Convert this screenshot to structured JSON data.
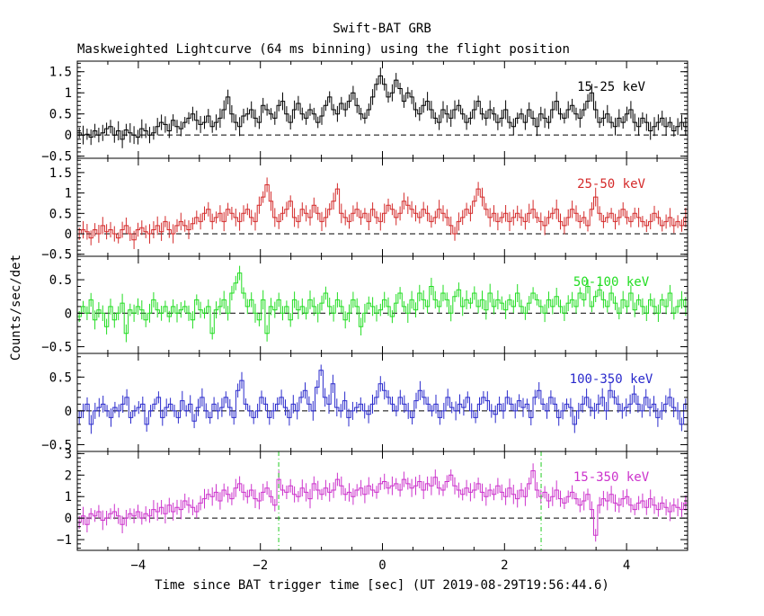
{
  "chart_data": {
    "type": "line",
    "title": "Swift-BAT GRB",
    "subtitle": "Maskweighted Lightcurve (64 ms binning) using the flight position",
    "xlabel": "Time since BAT trigger time [sec] (UT 2019-08-29T19:56:44.6)",
    "ylabel": "Counts/sec/det",
    "xlim": [
      -5,
      5
    ],
    "x_ticks": [
      -4,
      -2,
      0,
      2,
      4
    ],
    "grid": false,
    "panels": [
      {
        "label": "15-25 keV",
        "color": "#000000",
        "ylim": [
          -0.55,
          1.75
        ],
        "y_ticks": [
          {
            "v": -0.5,
            "t": "−0.5"
          },
          {
            "v": 0,
            "t": "0"
          },
          {
            "v": 0.5,
            "t": "0.5"
          },
          {
            "v": 1,
            "t": "1"
          },
          {
            "v": 1.5,
            "t": "1.5"
          }
        ],
        "values": [
          0.05,
          0.0,
          0.02,
          -0.05,
          0.1,
          0.0,
          0.05,
          0.15,
          0.2,
          0.0,
          0.1,
          -0.1,
          0.12,
          0.05,
          0.0,
          -0.05,
          0.15,
          0.1,
          0.0,
          0.05,
          0.2,
          0.3,
          0.25,
          0.1,
          0.35,
          0.2,
          0.15,
          0.3,
          0.4,
          0.5,
          0.35,
          0.25,
          0.3,
          0.45,
          0.2,
          0.3,
          0.4,
          0.6,
          0.9,
          0.5,
          0.3,
          0.2,
          0.45,
          0.5,
          0.6,
          0.4,
          0.3,
          0.7,
          0.6,
          0.5,
          0.4,
          0.7,
          0.8,
          0.5,
          0.3,
          0.6,
          0.75,
          0.5,
          0.4,
          0.6,
          0.5,
          0.3,
          0.45,
          0.7,
          0.9,
          0.6,
          0.5,
          0.75,
          0.6,
          0.8,
          1.0,
          0.7,
          0.5,
          0.4,
          0.6,
          0.9,
          1.2,
          1.4,
          1.2,
          0.9,
          1.0,
          1.3,
          1.1,
          0.8,
          1.0,
          0.9,
          0.6,
          0.5,
          0.7,
          0.8,
          0.6,
          0.4,
          0.3,
          0.6,
          0.5,
          0.4,
          0.6,
          0.7,
          0.5,
          0.3,
          0.4,
          0.6,
          0.8,
          0.5,
          0.4,
          0.6,
          0.5,
          0.3,
          0.4,
          0.6,
          0.3,
          0.2,
          0.4,
          0.5,
          0.3,
          0.6,
          0.4,
          0.2,
          0.5,
          0.4,
          0.3,
          0.6,
          0.8,
          0.5,
          0.4,
          0.6,
          0.7,
          0.5,
          0.4,
          0.6,
          0.8,
          1.0,
          0.6,
          0.3,
          0.4,
          0.5,
          0.3,
          0.2,
          0.4,
          0.3,
          0.5,
          0.6,
          0.3,
          0.2,
          0.4,
          0.3,
          0.1,
          0.2,
          0.3,
          0.4,
          0.2,
          0.3,
          0.1,
          0.2,
          0.3,
          0.2
        ]
      },
      {
        "label": "25-50 keV",
        "color": "#d42a2a",
        "ylim": [
          -0.55,
          1.85
        ],
        "y_ticks": [
          {
            "v": -0.5,
            "t": "−0.5"
          },
          {
            "v": 0,
            "t": "0"
          },
          {
            "v": 0.5,
            "t": "0.5"
          },
          {
            "v": 1,
            "t": "1"
          },
          {
            "v": 1.5,
            "t": "1.5"
          }
        ],
        "values": [
          0.0,
          0.1,
          0.05,
          -0.1,
          0.1,
          0.0,
          0.2,
          0.05,
          0.1,
          0.0,
          -0.1,
          0.1,
          0.2,
          0.0,
          -0.15,
          0.1,
          0.15,
          0.05,
          0.0,
          0.1,
          0.2,
          0.05,
          0.3,
          0.1,
          0.0,
          0.2,
          0.3,
          0.2,
          0.1,
          0.25,
          0.4,
          0.3,
          0.5,
          0.6,
          0.3,
          0.4,
          0.5,
          0.3,
          0.6,
          0.5,
          0.4,
          0.3,
          0.5,
          0.6,
          0.4,
          0.3,
          0.7,
          0.9,
          1.2,
          0.8,
          0.4,
          0.3,
          0.5,
          0.6,
          0.8,
          0.4,
          0.3,
          0.6,
          0.5,
          0.4,
          0.7,
          0.5,
          0.3,
          0.4,
          0.6,
          0.8,
          1.1,
          0.5,
          0.4,
          0.3,
          0.5,
          0.6,
          0.4,
          0.5,
          0.3,
          0.6,
          0.4,
          0.3,
          0.5,
          0.7,
          0.6,
          0.4,
          0.5,
          0.8,
          0.7,
          0.6,
          0.5,
          0.4,
          0.6,
          0.5,
          0.3,
          0.4,
          0.6,
          0.5,
          0.4,
          0.2,
          0.0,
          0.3,
          0.4,
          0.6,
          0.5,
          0.8,
          1.1,
          0.9,
          0.6,
          0.4,
          0.5,
          0.3,
          0.4,
          0.5,
          0.3,
          0.4,
          0.5,
          0.4,
          0.3,
          0.5,
          0.6,
          0.4,
          0.3,
          0.2,
          0.4,
          0.5,
          0.6,
          0.3,
          0.2,
          0.4,
          0.6,
          0.5,
          0.3,
          0.4,
          0.2,
          0.6,
          0.9,
          0.5,
          0.3,
          0.4,
          0.5,
          0.3,
          0.4,
          0.6,
          0.4,
          0.3,
          0.5,
          0.4,
          0.3,
          0.2,
          0.3,
          0.5,
          0.4,
          0.2,
          0.3,
          0.4,
          0.2,
          0.3,
          0.2,
          0.4
        ]
      },
      {
        "label": "50-100 keV",
        "color": "#22dd22",
        "ylim": [
          -0.6,
          0.85
        ],
        "y_ticks": [
          {
            "v": -0.5,
            "t": "−0.5"
          },
          {
            "v": 0,
            "t": "0"
          },
          {
            "v": 0.5,
            "t": "0.5"
          }
        ],
        "values": [
          -0.05,
          0.1,
          0.0,
          0.2,
          -0.1,
          0.05,
          0.0,
          -0.2,
          0.1,
          -0.1,
          0.0,
          0.15,
          -0.3,
          0.05,
          0.0,
          0.1,
          0.05,
          -0.1,
          0.0,
          0.2,
          0.05,
          0.0,
          0.1,
          -0.05,
          0.1,
          0.0,
          0.05,
          0.1,
          0.0,
          -0.1,
          0.2,
          0.05,
          0.0,
          0.1,
          -0.3,
          0.05,
          0.1,
          0.2,
          0.0,
          0.3,
          0.45,
          0.6,
          0.3,
          0.1,
          0.2,
          0.0,
          -0.1,
          0.2,
          -0.3,
          0.1,
          0.05,
          0.2,
          0.0,
          0.1,
          -0.1,
          0.2,
          0.05,
          0.1,
          0.0,
          0.2,
          0.1,
          0.0,
          0.15,
          0.3,
          0.1,
          0.0,
          0.2,
          0.1,
          -0.1,
          0.0,
          0.2,
          0.1,
          -0.2,
          0.0,
          0.15,
          0.1,
          0.0,
          0.05,
          0.2,
          0.1,
          -0.05,
          0.15,
          0.3,
          0.1,
          0.0,
          0.2,
          0.05,
          0.3,
          0.2,
          0.1,
          0.4,
          0.2,
          0.1,
          0.3,
          0.2,
          0.0,
          0.25,
          0.35,
          0.1,
          0.2,
          0.15,
          0.3,
          0.1,
          0.2,
          0.05,
          0.3,
          0.1,
          0.2,
          0.15,
          0.05,
          0.2,
          0.1,
          0.3,
          0.1,
          0.0,
          0.15,
          0.3,
          0.2,
          0.1,
          0.0,
          0.2,
          0.1,
          0.25,
          0.1,
          0.0,
          0.15,
          0.2,
          0.1,
          0.3,
          0.2,
          0.4,
          0.1,
          0.25,
          0.35,
          0.2,
          0.1,
          0.3,
          0.15,
          0.0,
          0.2,
          0.1,
          0.3,
          0.05,
          0.2,
          0.1,
          0.0,
          0.2,
          0.1,
          0.0,
          0.2,
          0.1,
          0.3,
          0.0,
          0.1,
          0.2,
          0.1
        ]
      },
      {
        "label": "100-350 keV",
        "color": "#2a2acc",
        "ylim": [
          -0.6,
          0.85
        ],
        "y_ticks": [
          {
            "v": -0.5,
            "t": "−0.5"
          },
          {
            "v": 0,
            "t": "0"
          },
          {
            "v": 0.5,
            "t": "0.5"
          }
        ],
        "values": [
          -0.1,
          0.0,
          0.1,
          -0.2,
          0.0,
          0.05,
          0.1,
          0.0,
          -0.1,
          0.05,
          0.0,
          0.1,
          0.2,
          -0.1,
          0.0,
          0.05,
          0.1,
          -0.2,
          0.0,
          0.1,
          0.2,
          -0.1,
          0.05,
          0.1,
          0.0,
          -0.1,
          0.15,
          0.0,
          0.1,
          -0.15,
          0.05,
          0.2,
          0.0,
          -0.1,
          0.1,
          0.0,
          0.05,
          0.2,
          0.05,
          -0.1,
          0.3,
          0.45,
          0.1,
          0.0,
          -0.1,
          0.0,
          0.2,
          0.1,
          -0.1,
          0.0,
          0.1,
          0.2,
          0.05,
          -0.1,
          0.1,
          0.0,
          0.2,
          0.3,
          0.1,
          0.0,
          0.35,
          0.6,
          0.2,
          0.1,
          0.4,
          0.05,
          0.0,
          0.15,
          -0.1,
          0.0,
          0.05,
          0.1,
          0.0,
          -0.05,
          0.1,
          0.2,
          0.4,
          0.3,
          0.2,
          0.1,
          0.0,
          0.2,
          0.1,
          0.0,
          -0.1,
          0.15,
          0.3,
          0.2,
          0.1,
          0.0,
          0.1,
          -0.1,
          0.0,
          0.2,
          0.05,
          0.0,
          0.1,
          0.05,
          0.2,
          0.0,
          -0.1,
          0.1,
          0.2,
          0.15,
          0.0,
          -0.05,
          0.1,
          0.0,
          0.2,
          0.1,
          0.0,
          0.15,
          0.05,
          0.1,
          -0.1,
          0.2,
          0.3,
          0.1,
          0.0,
          0.2,
          0.1,
          -0.1,
          0.0,
          0.1,
          0.05,
          -0.2,
          0.0,
          0.1,
          0.2,
          0.05,
          0.0,
          0.1,
          0.2,
          0.0,
          0.3,
          0.2,
          0.1,
          0.0,
          0.05,
          0.1,
          0.25,
          0.1,
          0.0,
          0.2,
          0.05,
          0.1,
          -0.1,
          0.0,
          0.1,
          0.2,
          0.05,
          0.0,
          -0.2,
          0.1
        ]
      },
      {
        "label": "15-350 keV",
        "color": "#cc33cc",
        "ylim": [
          -1.5,
          3.1
        ],
        "y_ticks": [
          {
            "v": -1,
            "t": "−1"
          },
          {
            "v": 0,
            "t": "0"
          },
          {
            "v": 1,
            "t": "1"
          },
          {
            "v": 2,
            "t": "2"
          },
          {
            "v": 3,
            "t": "3"
          }
        ],
        "values": [
          -0.2,
          0.1,
          -0.3,
          0.2,
          0.1,
          0.3,
          -0.1,
          0.0,
          0.2,
          0.3,
          0.1,
          -0.3,
          0.0,
          0.2,
          0.1,
          0.3,
          0.0,
          0.2,
          0.1,
          0.4,
          0.3,
          0.5,
          0.2,
          0.6,
          0.3,
          0.5,
          0.4,
          0.8,
          0.6,
          0.5,
          0.3,
          0.7,
          0.9,
          1.1,
          1.0,
          1.2,
          0.8,
          1.3,
          1.1,
          0.9,
          1.4,
          1.6,
          1.2,
          1.0,
          1.3,
          0.9,
          0.8,
          1.2,
          1.4,
          1.0,
          0.6,
          1.8,
          1.3,
          1.2,
          1.5,
          1.1,
          1.0,
          1.4,
          1.2,
          0.9,
          1.6,
          1.3,
          1.1,
          1.4,
          1.2,
          1.3,
          1.8,
          1.5,
          1.1,
          1.2,
          1.0,
          1.3,
          1.4,
          1.1,
          1.5,
          1.3,
          1.2,
          1.6,
          1.7,
          1.4,
          1.5,
          1.6,
          1.3,
          1.8,
          1.6,
          1.4,
          1.5,
          1.7,
          1.3,
          1.6,
          1.5,
          1.9,
          1.4,
          1.3,
          1.7,
          2.0,
          1.5,
          1.3,
          1.1,
          1.4,
          1.2,
          1.3,
          1.6,
          1.2,
          1.0,
          1.3,
          1.1,
          1.5,
          1.2,
          1.0,
          1.4,
          1.1,
          0.9,
          1.3,
          1.0,
          1.6,
          2.2,
          1.3,
          1.0,
          1.2,
          0.8,
          1.0,
          1.3,
          0.9,
          0.7,
          1.0,
          1.2,
          0.9,
          0.6,
          0.8,
          1.1,
          0.4,
          -0.8,
          0.6,
          0.9,
          0.8,
          1.1,
          0.7,
          0.6,
          0.9,
          1.0,
          0.6,
          0.4,
          0.7,
          0.8,
          0.5,
          0.9,
          0.6,
          0.4,
          0.7,
          0.5,
          0.3,
          0.6,
          0.5,
          0.4,
          0.7
        ]
      }
    ],
    "reference_lines": [
      -1.7,
      2.6
    ]
  }
}
